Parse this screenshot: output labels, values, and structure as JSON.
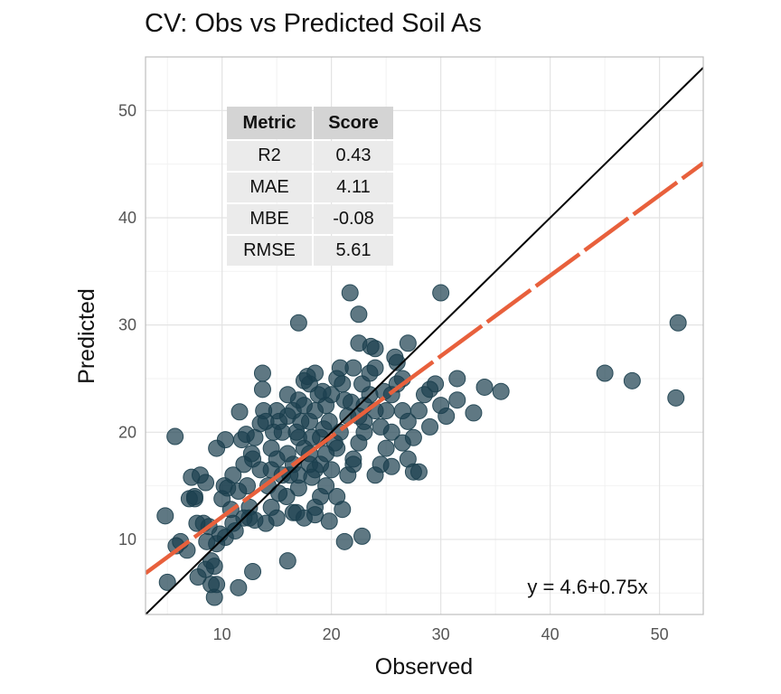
{
  "chart_data": {
    "type": "scatter",
    "title": "CV: Obs vs Predicted Soil As",
    "xlabel": "Observed",
    "ylabel": "Predicted",
    "xlim": [
      3,
      54
    ],
    "ylim": [
      3,
      55
    ],
    "x_ticks": [
      10,
      20,
      30,
      40,
      50
    ],
    "y_ticks": [
      10,
      20,
      30,
      40,
      50
    ],
    "grid": true,
    "point_color": "#1b3f4e",
    "fit_line": {
      "intercept": 4.6,
      "slope": 0.75,
      "color": "#e8603c",
      "style": "dashed",
      "label": "y = 4.6+0.75x"
    },
    "identity_line": {
      "intercept": 0,
      "slope": 1,
      "color": "#000000"
    },
    "points": [
      [
        5.7,
        19.6
      ],
      [
        4.8,
        12.2
      ],
      [
        5.8,
        9.4
      ],
      [
        6.2,
        9.8
      ],
      [
        5.0,
        6.0
      ],
      [
        6.8,
        9.0
      ],
      [
        7.0,
        13.8
      ],
      [
        7.5,
        14.0
      ],
      [
        7.2,
        15.8
      ],
      [
        8.0,
        16.0
      ],
      [
        8.5,
        15.3
      ],
      [
        7.7,
        11.5
      ],
      [
        8.3,
        11.5
      ],
      [
        8.8,
        11.2
      ],
      [
        8.6,
        9.8
      ],
      [
        9.0,
        8.0
      ],
      [
        9.3,
        7.5
      ],
      [
        7.8,
        6.5
      ],
      [
        9.0,
        5.8
      ],
      [
        9.5,
        5.8
      ],
      [
        9.3,
        4.6
      ],
      [
        9.8,
        10.5
      ],
      [
        10.3,
        10.2
      ],
      [
        10.0,
        13.8
      ],
      [
        10.5,
        14.8
      ],
      [
        10.2,
        15.0
      ],
      [
        9.5,
        18.5
      ],
      [
        10.3,
        19.3
      ],
      [
        11.0,
        11.5
      ],
      [
        11.5,
        14.5
      ],
      [
        11.0,
        16.0
      ],
      [
        12.0,
        17.0
      ],
      [
        12.8,
        17.5
      ],
      [
        12.3,
        15.0
      ],
      [
        11.8,
        19.3
      ],
      [
        11.6,
        21.9
      ],
      [
        13.0,
        19.5
      ],
      [
        13.5,
        20.8
      ],
      [
        13.8,
        22.0
      ],
      [
        13.7,
        24.0
      ],
      [
        13.7,
        25.5
      ],
      [
        12.5,
        13.0
      ],
      [
        12.5,
        12.0
      ],
      [
        13.0,
        11.8
      ],
      [
        11.5,
        5.5
      ],
      [
        12.8,
        7.0
      ],
      [
        12.7,
        18.0
      ],
      [
        12.2,
        19.8
      ],
      [
        14.2,
        15.0
      ],
      [
        14.5,
        13.0
      ],
      [
        14.0,
        11.5
      ],
      [
        15.0,
        12.0
      ],
      [
        15.2,
        14.3
      ],
      [
        14.5,
        16.5
      ],
      [
        15.0,
        17.5
      ],
      [
        14.7,
        20.0
      ],
      [
        15.2,
        21.0
      ],
      [
        15.5,
        20.0
      ],
      [
        16.0,
        21.5
      ],
      [
        16.0,
        18.0
      ],
      [
        16.5,
        17.0
      ],
      [
        17.0,
        19.5
      ],
      [
        16.8,
        20.0
      ],
      [
        16.2,
        16.0
      ],
      [
        15.9,
        14.0
      ],
      [
        16.5,
        12.5
      ],
      [
        17.0,
        14.8
      ],
      [
        16.5,
        22.0
      ],
      [
        17.0,
        23.0
      ],
      [
        17.5,
        22.5
      ],
      [
        17.2,
        21.0
      ],
      [
        17.5,
        18.5
      ],
      [
        18.0,
        17.0
      ],
      [
        18.2,
        19.5
      ],
      [
        18.0,
        21.0
      ],
      [
        18.5,
        22.0
      ],
      [
        18.8,
        23.5
      ],
      [
        18.0,
        24.5
      ],
      [
        17.8,
        25.2
      ],
      [
        18.5,
        25.5
      ],
      [
        17.0,
        30.2
      ],
      [
        17.5,
        24.8
      ],
      [
        18.5,
        16.5
      ],
      [
        19.0,
        17.0
      ],
      [
        19.5,
        18.0
      ],
      [
        19.0,
        19.5
      ],
      [
        19.8,
        21.0
      ],
      [
        19.5,
        22.5
      ],
      [
        20.0,
        23.5
      ],
      [
        20.5,
        25.0
      ],
      [
        20.8,
        26.0
      ],
      [
        21.0,
        24.5
      ],
      [
        21.2,
        23.0
      ],
      [
        21.5,
        21.5
      ],
      [
        20.8,
        20.0
      ],
      [
        20.5,
        18.5
      ],
      [
        20.0,
        16.5
      ],
      [
        19.5,
        15.0
      ],
      [
        19.0,
        14.0
      ],
      [
        18.5,
        13.0
      ],
      [
        17.5,
        12.0
      ],
      [
        16.8,
        12.5
      ],
      [
        16.0,
        8.0
      ],
      [
        18.5,
        12.3
      ],
      [
        19.8,
        11.7
      ],
      [
        21.5,
        16.0
      ],
      [
        22.0,
        17.5
      ],
      [
        22.5,
        19.0
      ],
      [
        23.0,
        20.0
      ],
      [
        22.5,
        21.5
      ],
      [
        23.0,
        22.5
      ],
      [
        23.5,
        23.5
      ],
      [
        22.8,
        24.5
      ],
      [
        23.5,
        25.5
      ],
      [
        24.0,
        26.0
      ],
      [
        22.5,
        28.3
      ],
      [
        22.5,
        31.0
      ],
      [
        23.6,
        28.0
      ],
      [
        24.0,
        27.8
      ],
      [
        21.7,
        33.0
      ],
      [
        24.0,
        16.0
      ],
      [
        24.5,
        17.0
      ],
      [
        25.0,
        18.5
      ],
      [
        25.5,
        20.0
      ],
      [
        25.0,
        22.0
      ],
      [
        25.5,
        23.5
      ],
      [
        26.0,
        24.5
      ],
      [
        26.0,
        26.5
      ],
      [
        27.0,
        28.3
      ],
      [
        26.5,
        22.0
      ],
      [
        27.0,
        21.0
      ],
      [
        27.5,
        19.5
      ],
      [
        26.5,
        19.0
      ],
      [
        27.0,
        17.5
      ],
      [
        25.5,
        16.8
      ],
      [
        27.5,
        16.3
      ],
      [
        28.0,
        16.3
      ],
      [
        28.0,
        22.0
      ],
      [
        28.5,
        23.5
      ],
      [
        29.0,
        24.0
      ],
      [
        29.5,
        24.5
      ],
      [
        30.0,
        22.5
      ],
      [
        30.0,
        33.0
      ],
      [
        30.5,
        21.5
      ],
      [
        31.5,
        23.0
      ],
      [
        31.5,
        25.0
      ],
      [
        33.0,
        21.8
      ],
      [
        34.0,
        24.2
      ],
      [
        35.5,
        23.8
      ],
      [
        22.8,
        10.3
      ],
      [
        21.2,
        9.8
      ],
      [
        45.0,
        25.5
      ],
      [
        47.5,
        24.8
      ],
      [
        51.5,
        23.2
      ],
      [
        51.7,
        30.2
      ],
      [
        14.5,
        18.5
      ],
      [
        15.5,
        16.0
      ],
      [
        13.5,
        16.5
      ],
      [
        12.0,
        12.0
      ],
      [
        11.2,
        10.8
      ],
      [
        20.5,
        14.0
      ],
      [
        21.0,
        12.8
      ],
      [
        22.0,
        17.0
      ],
      [
        24.5,
        20.5
      ],
      [
        26.5,
        25.0
      ],
      [
        19.3,
        20.3
      ],
      [
        18.2,
        15.8
      ],
      [
        17.0,
        16.0
      ],
      [
        16.0,
        23.5
      ],
      [
        15.0,
        22.0
      ],
      [
        14.0,
        21.0
      ],
      [
        23.0,
        21.0
      ],
      [
        24.0,
        22.0
      ],
      [
        24.8,
        23.8
      ],
      [
        21.8,
        22.8
      ],
      [
        20.3,
        19.0
      ],
      [
        19.2,
        23.8
      ],
      [
        18.0,
        18.0
      ],
      [
        10.8,
        12.8
      ],
      [
        8.5,
        7.2
      ],
      [
        7.5,
        13.8
      ],
      [
        9.5,
        9.6
      ],
      [
        22.0,
        26.0
      ],
      [
        25.8,
        27.0
      ],
      [
        29.0,
        20.5
      ]
    ]
  },
  "table": {
    "headers": [
      "Metric",
      "Score"
    ],
    "rows": [
      [
        "R2",
        "0.43"
      ],
      [
        "MAE",
        "4.11"
      ],
      [
        "MBE",
        "-0.08"
      ],
      [
        "RMSE",
        "5.61"
      ]
    ]
  }
}
